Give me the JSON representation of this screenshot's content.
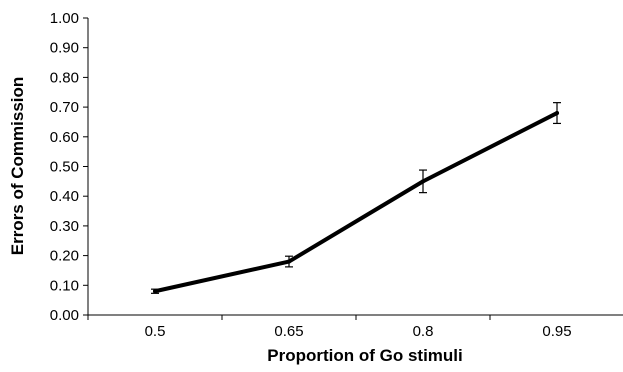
{
  "chart_data": {
    "type": "line",
    "categories": [
      "0.5",
      "0.65",
      "0.8",
      "0.95"
    ],
    "series": [
      {
        "values": [
          0.08,
          0.18,
          0.45,
          0.68
        ],
        "error": [
          0.007,
          0.018,
          0.038,
          0.035
        ]
      }
    ],
    "xlabel": "Proportion of Go stimuli",
    "ylabel": "Errors of Commission",
    "ylim": [
      0,
      1
    ],
    "yticks": [
      "0.00",
      "0.10",
      "0.20",
      "0.30",
      "0.40",
      "0.50",
      "0.60",
      "0.70",
      "0.80",
      "0.90",
      "1.00"
    ],
    "grid": false,
    "line_color": "#000000"
  }
}
